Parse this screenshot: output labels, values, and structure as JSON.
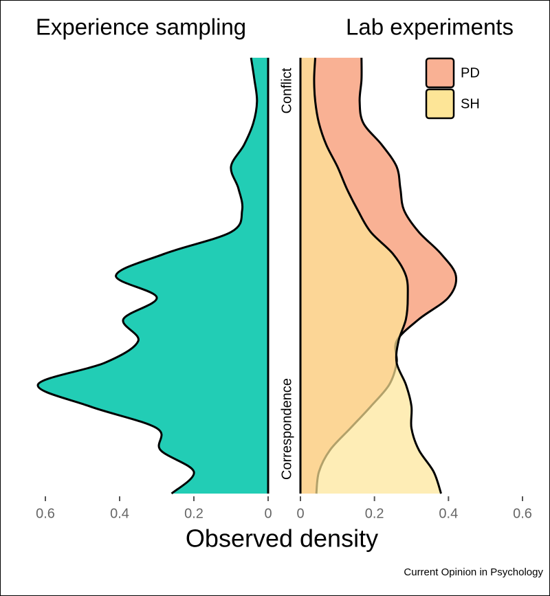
{
  "source": "Current Opinion in Psychology",
  "chart_data": [
    {
      "type": "density",
      "title": "Experience sampling",
      "xlabel": "Observed density",
      "y_top_label": "Conflict",
      "y_bottom_label": "Correspondence",
      "xlim": [
        0.6,
        0
      ],
      "xticks": [
        0.6,
        0.4,
        0.2,
        0
      ],
      "ylim": [
        0,
        1
      ],
      "y": [
        0,
        0.05,
        0.1,
        0.15,
        0.2,
        0.25,
        0.3,
        0.35,
        0.4,
        0.45,
        0.5,
        0.55,
        0.6,
        0.65,
        0.7,
        0.75,
        0.8,
        0.85,
        0.9,
        0.95,
        1
      ],
      "series": [
        {
          "color": "#22cdb5",
          "values": [
            0.26,
            0.2,
            0.29,
            0.3,
            0.48,
            0.62,
            0.44,
            0.35,
            0.39,
            0.3,
            0.41,
            0.28,
            0.1,
            0.07,
            0.08,
            0.1,
            0.065,
            0.04,
            0.03,
            0.037,
            0.046
          ]
        }
      ]
    },
    {
      "type": "density",
      "title": "Lab experiments",
      "xlim": [
        0,
        0.6
      ],
      "xticks": [
        0,
        0.2,
        0.4,
        0.6
      ],
      "ylim": [
        0,
        1
      ],
      "y": [
        0,
        0.05,
        0.1,
        0.15,
        0.2,
        0.25,
        0.3,
        0.35,
        0.4,
        0.45,
        0.5,
        0.55,
        0.6,
        0.65,
        0.7,
        0.75,
        0.8,
        0.85,
        0.9,
        0.95,
        1
      ],
      "legend": "top-right",
      "series": [
        {
          "name": "PD",
          "color": "#f9b194",
          "values": [
            0.043,
            0.05,
            0.08,
            0.135,
            0.19,
            0.24,
            0.26,
            0.26,
            0.32,
            0.4,
            0.42,
            0.38,
            0.32,
            0.28,
            0.27,
            0.26,
            0.22,
            0.17,
            0.16,
            0.165,
            0.165
          ]
        },
        {
          "name": "SH",
          "color": "#fde597",
          "values": [
            0.38,
            0.36,
            0.32,
            0.3,
            0.3,
            0.285,
            0.26,
            0.265,
            0.285,
            0.29,
            0.285,
            0.25,
            0.19,
            0.155,
            0.125,
            0.1,
            0.07,
            0.05,
            0.04,
            0.037,
            0.04
          ]
        }
      ]
    }
  ]
}
